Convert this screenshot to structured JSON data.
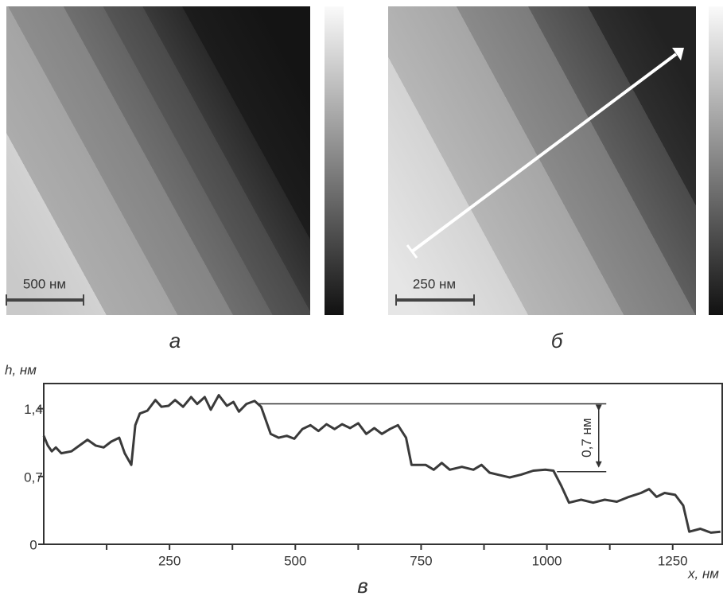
{
  "panels": [
    {
      "label": "а",
      "scale_bar": "500 нм"
    },
    {
      "label": "б",
      "scale_bar": "250 нм"
    }
  ],
  "chart_data": {
    "type": "line",
    "caption": "в",
    "ylabel": "h, нм",
    "xlabel": "x, нм",
    "x": [
      0,
      8,
      16,
      24,
      35,
      55,
      71,
      87,
      103,
      119,
      134,
      150,
      161,
      174,
      182,
      191,
      206,
      222,
      234,
      248,
      261,
      277,
      293,
      305,
      320,
      332,
      348,
      364,
      377,
      388,
      403,
      419,
      432,
      451,
      467,
      483,
      498,
      514,
      530,
      546,
      562,
      578,
      593,
      609,
      625,
      641,
      657,
      672,
      688,
      704,
      720,
      731,
      744,
      759,
      775,
      791,
      807,
      831,
      854,
      870,
      886,
      902,
      926,
      949,
      973,
      997,
      1013,
      1028,
      1044,
      1068,
      1092,
      1115,
      1139,
      1163,
      1187,
      1203,
      1218,
      1234,
      1255,
      1271,
      1283,
      1305,
      1326,
      1345
    ],
    "series": [
      {
        "color": "#3a3a3a",
        "values": [
          1.12,
          1.02,
          0.96,
          1.0,
          0.94,
          0.96,
          1.02,
          1.08,
          1.02,
          1.0,
          1.06,
          1.1,
          0.94,
          0.82,
          1.23,
          1.35,
          1.38,
          1.49,
          1.42,
          1.43,
          1.49,
          1.42,
          1.52,
          1.45,
          1.52,
          1.39,
          1.54,
          1.43,
          1.47,
          1.37,
          1.45,
          1.48,
          1.42,
          1.14,
          1.1,
          1.12,
          1.09,
          1.19,
          1.23,
          1.17,
          1.24,
          1.19,
          1.24,
          1.2,
          1.25,
          1.14,
          1.2,
          1.14,
          1.19,
          1.23,
          1.1,
          0.82,
          0.82,
          0.82,
          0.77,
          0.84,
          0.77,
          0.8,
          0.77,
          0.82,
          0.74,
          0.72,
          0.69,
          0.72,
          0.76,
          0.77,
          0.76,
          0.61,
          0.43,
          0.46,
          0.43,
          0.46,
          0.44,
          0.49,
          0.53,
          0.57,
          0.49,
          0.53,
          0.51,
          0.4,
          0.13,
          0.16,
          0.12,
          0.13
        ]
      }
    ],
    "xlim": [
      0,
      1350
    ],
    "ylim": [
      0,
      1.66
    ],
    "xticks": [
      250,
      500,
      750,
      1000,
      1250
    ],
    "xminor_ticks": [
      125,
      375,
      625,
      875,
      1125
    ],
    "yticks": [
      0,
      {
        "value": 0.7,
        "label": "0,7"
      },
      {
        "value": 1.4,
        "label": "1,4"
      }
    ],
    "annotation": {
      "label": "0,7 нм",
      "upper": 1.45,
      "lower": 0.75,
      "upper_from": 427,
      "lower_from": 1020,
      "to": 1118,
      "arrow_x": 1103
    }
  }
}
